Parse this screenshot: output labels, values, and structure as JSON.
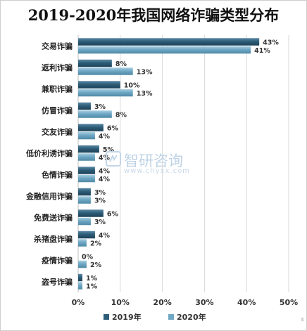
{
  "chart_data": {
    "type": "bar",
    "orientation": "horizontal",
    "title": "2019-2020年我国网络诈骗类型分布",
    "categories": [
      "交易诈骗",
      "返利诈骗",
      "兼职诈骗",
      "仿冒诈骗",
      "交友诈骗",
      "低价利诱诈骗",
      "色情诈骗",
      "金融信用诈骗",
      "免费送诈骗",
      "杀猪盘诈骗",
      "疫情诈骗",
      "盗号诈骗"
    ],
    "series": [
      {
        "name": "2019年",
        "values": [
          43,
          8,
          10,
          3,
          6,
          5,
          4,
          3,
          6,
          4,
          0,
          1
        ],
        "labels": [
          "43%",
          "8%",
          "10%",
          "3%",
          "6%",
          "5%",
          "4%",
          "3%",
          "6%",
          "4%",
          "0%",
          "1%"
        ],
        "color": "#2d5d78"
      },
      {
        "name": "2020年",
        "values": [
          41,
          13,
          13,
          8,
          4,
          4,
          4,
          3,
          3,
          2,
          2,
          1
        ],
        "labels": [
          "41%",
          "13%",
          "13%",
          "8%",
          "4%",
          "4%",
          "4%",
          "3%",
          "3%",
          "2%",
          "2%",
          "1%"
        ],
        "color": "#6fa8c4"
      }
    ],
    "xlim": [
      0,
      50
    ],
    "x_ticks": [
      "0%",
      "10%",
      "20%",
      "30%",
      "40%",
      "50%"
    ],
    "grid": true,
    "legend_position": "bottom"
  },
  "watermark": {
    "cn": "智研咨询",
    "url": "www.chyxx.com"
  },
  "corner_mark": "4"
}
